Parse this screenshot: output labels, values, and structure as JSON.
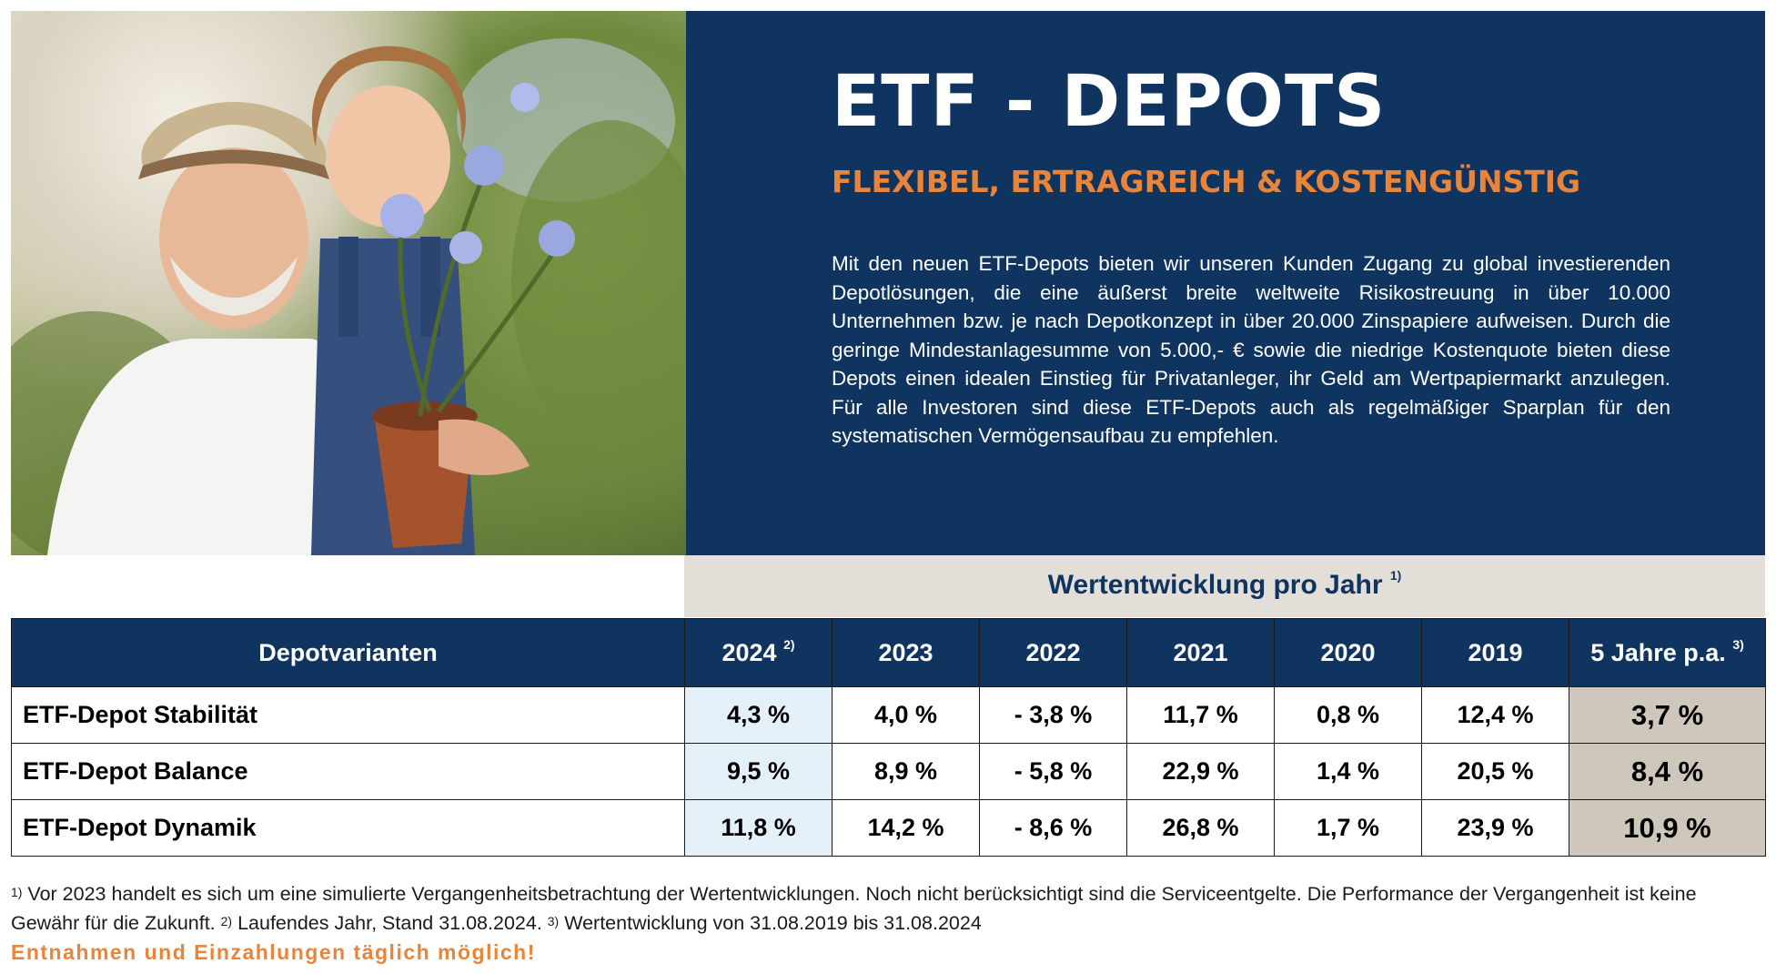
{
  "hero": {
    "title": "ETF - DEPOTS",
    "subtitle": "FLEXIBEL, ERTRAGREICH & KOSTENGÜNSTIG",
    "body": "Mit den neuen ETF-Depots bieten wir unseren Kunden Zugang zu global investierenden Depotlösungen, die eine äußerst breite weltweite Risikostreuung in über 10.000 Unternehmen bzw. je nach Depotkonzept in über 20.000 Zinspapiere aufweisen. Durch die geringe Mindestanlagesumme von 5.000,- € sowie die niedrige Kostenquote bieten diese Depots einen idealen Einstieg für Privatanleger, ihr Geld am Wertpapiermarkt anzulegen. Für alle Investoren sind diese ETF-Depots auch als regelmäßiger Sparplan für den systematischen Vermögensaufbau zu empfehlen."
  },
  "performance": {
    "heading": "Wertentwicklung pro Jahr",
    "heading_note": "1)",
    "columns": [
      {
        "label": "Depotvarianten",
        "note": ""
      },
      {
        "label": "2024",
        "note": "2)"
      },
      {
        "label": "2023",
        "note": ""
      },
      {
        "label": "2022",
        "note": ""
      },
      {
        "label": "2021",
        "note": ""
      },
      {
        "label": "2020",
        "note": ""
      },
      {
        "label": "2019",
        "note": ""
      },
      {
        "label": "5 Jahre p.a.",
        "note": "3)"
      }
    ],
    "rows": [
      {
        "name": "ETF-Depot Stabilität",
        "values": [
          "4,3 %",
          "4,0 %",
          "- 3,8 %",
          "11,7 %",
          "0,8 %",
          "12,4 %",
          "3,7 %"
        ]
      },
      {
        "name": "ETF-Depot Balance",
        "values": [
          "9,5 %",
          "8,9 %",
          "- 5,8 %",
          "22,9 %",
          "1,4 %",
          "20,5 %",
          "8,4 %"
        ]
      },
      {
        "name": "ETF-Depot Dynamik",
        "values": [
          "11,8 %",
          "14,2 %",
          "- 8,6 %",
          "26,8 %",
          "1,7 %",
          "23,9 %",
          "10,9 %"
        ]
      }
    ]
  },
  "footnotes": {
    "n1": "1)",
    "t1": " Vor 2023 handelt es sich um eine simulierte Vergangenheitsbetrachtung der Wertentwicklungen. Noch nicht berücksichtigt sind die Serviceentgelte. Die Performance der Vergangenheit ist keine Gewähr für die Zukunft. ",
    "n2": "2)",
    "t2": " Laufendes Jahr, Stand 31.08.2024. ",
    "n3": "3)",
    "t3": " Wertentwicklung von 31.08.2019 bis 31.08.2024",
    "highlight": "Entnahmen und Einzahlungen täglich möglich!"
  },
  "colors": {
    "navy": "#0f3460",
    "orange": "#e8853a",
    "beige": "#e3dfd8",
    "taupe": "#cfc7bc",
    "lightblue": "#e4f0f8"
  }
}
